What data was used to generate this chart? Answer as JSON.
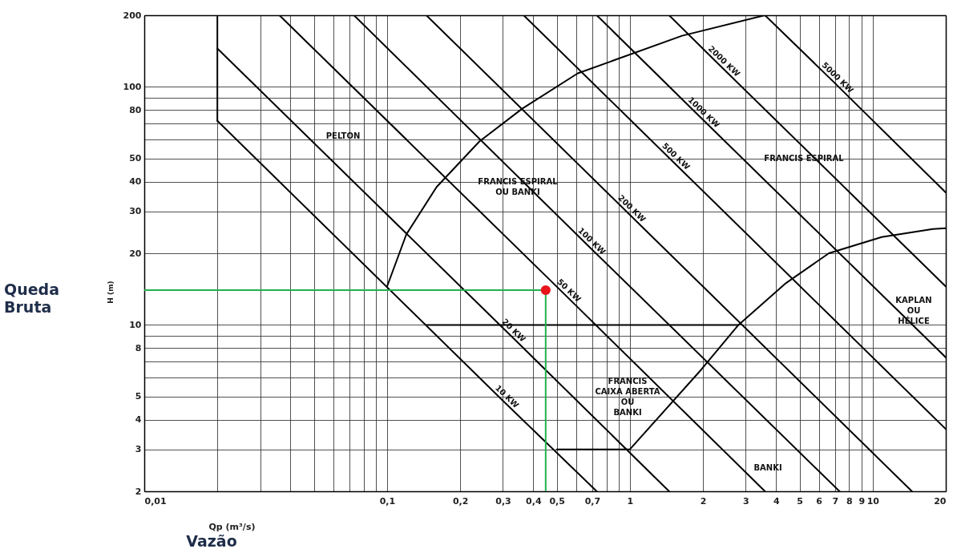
{
  "chart_data": {
    "type": "line",
    "xlabel": "Qp (m³/s)",
    "ylabel": "H (m)",
    "log": "xy",
    "grid": true,
    "xlim": [
      0.01,
      20
    ],
    "ylim": [
      2,
      200
    ],
    "xticks": [
      {
        "value": 0.01,
        "label": "0,01"
      },
      {
        "value": 0.02,
        "label": null
      },
      {
        "value": 0.03,
        "label": null
      },
      {
        "value": 0.04,
        "label": null
      },
      {
        "value": 0.05,
        "label": null
      },
      {
        "value": 0.06,
        "label": null
      },
      {
        "value": 0.07,
        "label": null
      },
      {
        "value": 0.08,
        "label": null
      },
      {
        "value": 0.09,
        "label": null
      },
      {
        "value": 0.1,
        "label": "0,1"
      },
      {
        "value": 0.2,
        "label": "0,2"
      },
      {
        "value": 0.3,
        "label": "0,3"
      },
      {
        "value": 0.4,
        "label": "0,4"
      },
      {
        "value": 0.5,
        "label": "0,5"
      },
      {
        "value": 0.6,
        "label": null
      },
      {
        "value": 0.7,
        "label": "0,7"
      },
      {
        "value": 0.8,
        "label": null
      },
      {
        "value": 0.9,
        "label": null
      },
      1,
      2,
      3,
      4,
      5,
      6,
      7,
      8,
      9,
      10,
      20
    ],
    "yticks": [
      2,
      3,
      4,
      5,
      {
        "value": 6,
        "label": null
      },
      {
        "value": 7,
        "label": null
      },
      8,
      {
        "value": 9,
        "label": null
      },
      10,
      20,
      30,
      40,
      50,
      {
        "value": 60,
        "label": null
      },
      {
        "value": 70,
        "label": null
      },
      80,
      {
        "value": 90,
        "label": null
      },
      100,
      200
    ],
    "series": [
      {
        "color": "#000000",
        "x": [
          0.02,
          0.02
        ],
        "values": [
          72,
          200
        ]
      },
      {
        "name": "10 KW",
        "color": "#000000",
        "x": [
          0.02,
          0.3,
          0.73
        ],
        "values": [
          72,
          4.8,
          2
        ]
      },
      {
        "name": "20 KW",
        "color": "#000000",
        "x": [
          0.02,
          0.32,
          1.45
        ],
        "values": [
          145,
          9.1,
          2
        ]
      },
      {
        "name": "50 KW",
        "color": "#000000",
        "x": [
          0.036,
          0.54,
          3.6
        ],
        "values": [
          200,
          13.4,
          2
        ]
      },
      {
        "name": "100 KW",
        "color": "#000000",
        "x": [
          0.073,
          0.67,
          7.3
        ],
        "values": [
          200,
          21.6,
          2
        ]
      },
      {
        "name": "200 KW",
        "color": "#000000",
        "x": [
          0.145,
          0.98,
          14.5
        ],
        "values": [
          200,
          29.6,
          2
        ]
      },
      {
        "name": "500 KW",
        "color": "#000000",
        "x": [
          0.365,
          1.49,
          20
        ],
        "values": [
          200,
          49,
          3.65
        ]
      },
      {
        "name": "1000 KW",
        "color": "#000000",
        "x": [
          0.73,
          1.94,
          20
        ],
        "values": [
          200,
          75,
          7.3
        ]
      },
      {
        "name": "2000 KW",
        "color": "#000000",
        "x": [
          1.45,
          2.35,
          20
        ],
        "values": [
          200,
          123,
          14.5
        ]
      },
      {
        "name": "5000 KW",
        "color": "#000000",
        "x": [
          3.6,
          6.9,
          20
        ],
        "values": [
          200,
          105,
          36
        ]
      },
      {
        "color": "#000000",
        "x": [
          0.145,
          2.8
        ],
        "values": [
          10,
          10
        ]
      },
      {
        "color": "#000000",
        "x": [
          0.1,
          0.12,
          0.16,
          0.24,
          0.36,
          0.61,
          1.64,
          3.6
        ],
        "values": [
          14.5,
          24,
          38,
          59,
          81,
          114,
          164,
          200
        ]
      },
      {
        "color": "#000000",
        "x": [
          0.5,
          1,
          1.97,
          2.8,
          4.4,
          6.6,
          10.9,
          17.7,
          20
        ],
        "values": [
          3,
          3,
          6.5,
          10,
          15,
          20,
          23.4,
          25.3,
          25.5
        ]
      },
      {
        "color": "#22b14c",
        "x": [
          0.01,
          0.45,
          0.45
        ],
        "values": [
          14,
          14,
          2
        ]
      },
      {
        "type": "scatter",
        "color": "#e8141c",
        "x": [
          0.45
        ],
        "values": [
          14
        ]
      }
    ],
    "annotations": [
      "PELTON",
      "FRANCIS ESPIRAL\nOU  BANKI",
      "FRANCIS  ESPIRAL",
      "KAPLAN\nOU\nHÉLICE",
      "FRANCIS\nCAIXA ABERTA\nOU\nBANKI",
      "BANKI",
      "Queda\nBruta",
      "Vazão"
    ]
  }
}
